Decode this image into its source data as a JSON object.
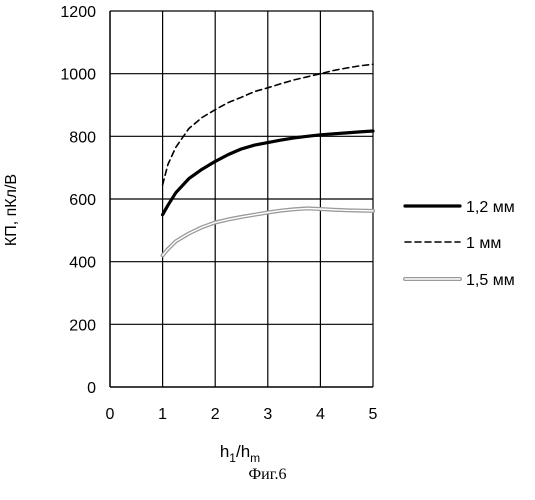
{
  "caption": "Фиг.6",
  "chart_data": {
    "type": "line",
    "xlabel_main": "h",
    "xlabel_sub1": "1",
    "xlabel_sep": "/h",
    "xlabel_sub2": "m",
    "ylabel": "КП, пКл/В",
    "xlim": [
      0,
      5
    ],
    "ylim": [
      0,
      1200
    ],
    "grid": true,
    "legend_position": "right",
    "x_ticks": [
      "0",
      "1",
      "2",
      "3",
      "4",
      "5"
    ],
    "y_ticks": [
      "0",
      "200",
      "400",
      "600",
      "800",
      "1000",
      "1200"
    ],
    "series": [
      {
        "name": "1,2 мм",
        "style": "solid-bold",
        "color": "#000000",
        "x": [
          1.0,
          1.1,
          1.25,
          1.5,
          1.75,
          2.0,
          2.25,
          2.5,
          2.75,
          3.0,
          3.25,
          3.5,
          3.75,
          4.0,
          4.25,
          4.5,
          4.75,
          5.0
        ],
        "y": [
          550,
          580,
          620,
          665,
          695,
          720,
          742,
          760,
          772,
          780,
          788,
          795,
          800,
          805,
          808,
          811,
          814,
          817
        ]
      },
      {
        "name": "1 мм",
        "style": "dashed",
        "color": "#000000",
        "x": [
          1.0,
          1.1,
          1.25,
          1.5,
          1.75,
          2.0,
          2.25,
          2.5,
          2.75,
          3.0,
          3.25,
          3.5,
          3.75,
          4.0,
          4.25,
          4.5,
          4.75,
          5.0
        ],
        "y": [
          645,
          710,
          765,
          825,
          860,
          885,
          908,
          925,
          943,
          955,
          968,
          980,
          990,
          1000,
          1010,
          1018,
          1025,
          1030
        ]
      },
      {
        "name": "1,5 мм",
        "style": "double-gray",
        "color": "#9a9a9a",
        "x": [
          1.0,
          1.1,
          1.25,
          1.5,
          1.75,
          2.0,
          2.25,
          2.5,
          2.75,
          3.0,
          3.25,
          3.5,
          3.75,
          4.0,
          4.25,
          4.5,
          4.75,
          5.0
        ],
        "y": [
          420,
          440,
          465,
          490,
          510,
          525,
          535,
          543,
          550,
          557,
          563,
          567,
          570,
          568,
          566,
          564,
          563,
          562
        ]
      }
    ]
  }
}
